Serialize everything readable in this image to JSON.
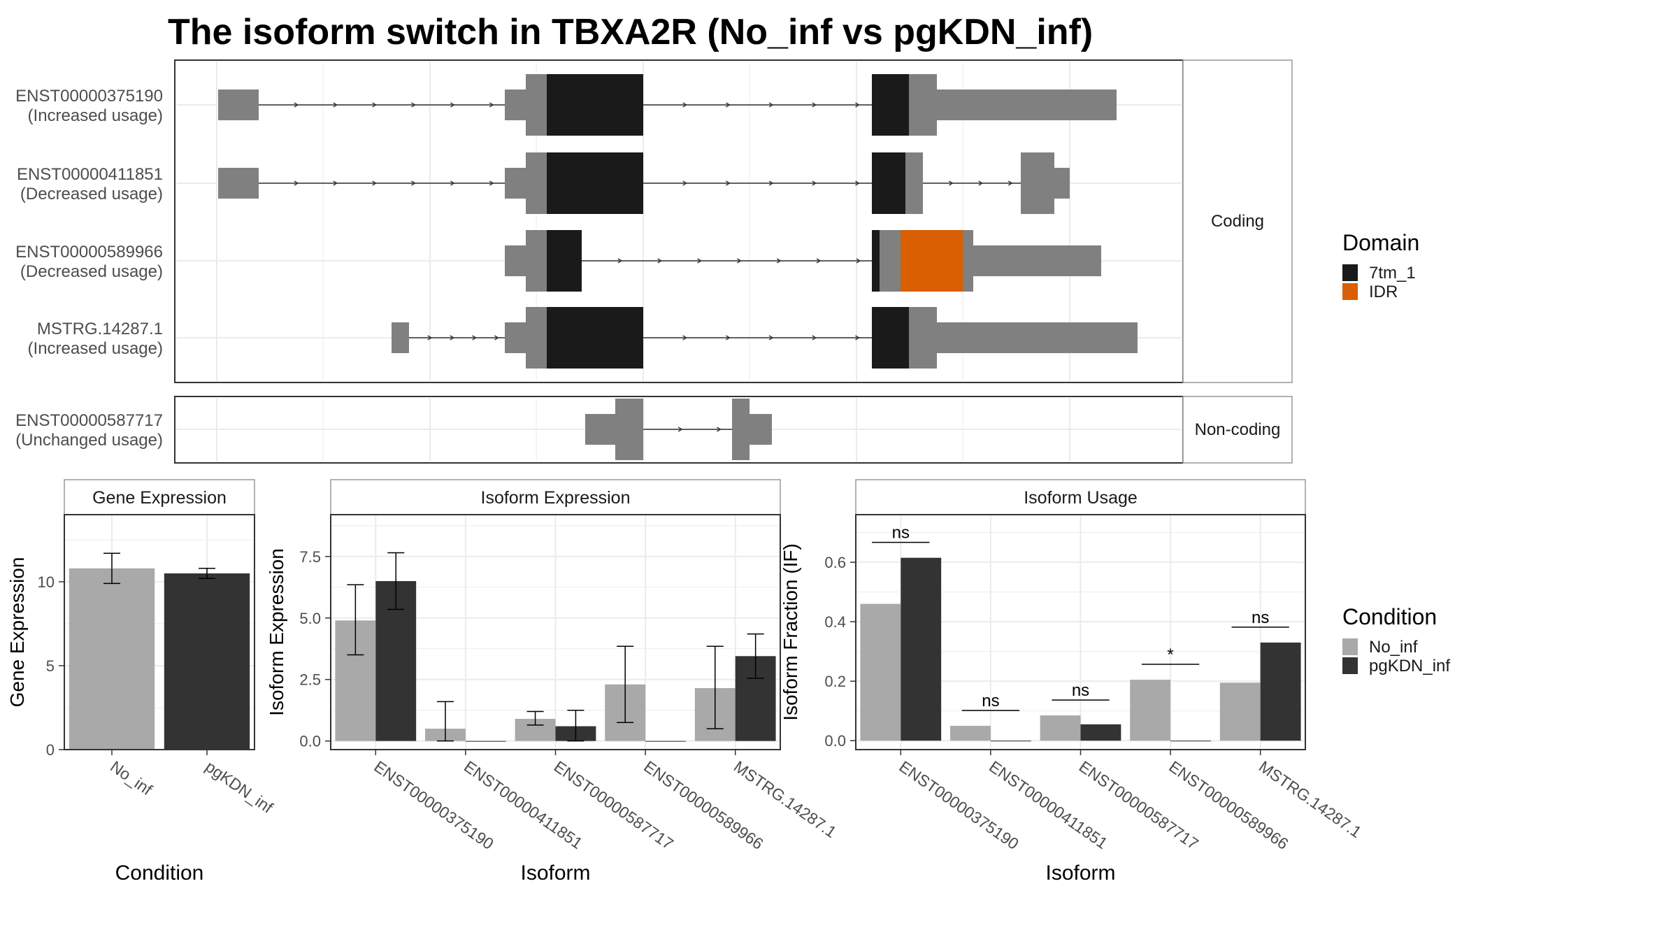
{
  "title": "The isoform switch in TBXA2R (No_inf vs pgKDN_inf)",
  "colors": {
    "exon": "#808080",
    "domain_7tm_1": "#1a1a1a",
    "domain_IDR": "#d95f02",
    "no_inf": "#a9a9a9",
    "pgkdn_inf": "#333333",
    "frame": "#333333",
    "grid": "#ebebeb",
    "strip_bg": "#ffffff"
  },
  "structure": {
    "coding_label": "Coding",
    "noncoding_label": "Non-coding",
    "isoforms": [
      {
        "id": "ENST00000375190",
        "usage": "(Increased usage)"
      },
      {
        "id": "ENST00000411851",
        "usage": "(Decreased usage)"
      },
      {
        "id": "ENST00000589966",
        "usage": "(Decreased usage)"
      },
      {
        "id": "MSTRG.14287.1",
        "usage": "(Increased usage)"
      },
      {
        "id": "ENST00000587717",
        "usage": "(Unchanged usage)"
      }
    ]
  },
  "domain_legend": {
    "title": "Domain",
    "items": [
      {
        "label": "7tm_1",
        "color": "#1a1a1a"
      },
      {
        "label": "IDR",
        "color": "#d95f02"
      }
    ]
  },
  "condition_legend": {
    "title": "Condition",
    "items": [
      {
        "label": "No_inf",
        "color": "#a9a9a9"
      },
      {
        "label": "pgKDN_inf",
        "color": "#333333"
      }
    ]
  },
  "chart_data": [
    {
      "type": "bar",
      "title": "Gene Expression",
      "xlabel": "Condition",
      "ylabel": "Gene Expression",
      "categories": [
        "No_inf",
        "pgKDN_inf"
      ],
      "values": [
        10.8,
        10.5
      ],
      "errors": [
        [
          9.9,
          11.7
        ],
        [
          10.2,
          10.8
        ]
      ],
      "ylim": [
        0,
        14
      ],
      "yticks": [
        0,
        5,
        10
      ],
      "ytick_labels": [
        "0",
        "5",
        "10"
      ]
    },
    {
      "type": "bar",
      "title": "Isoform Expression",
      "xlabel": "Isoform",
      "ylabel": "Isoform Expression",
      "categories": [
        "ENST00000375190",
        "ENST00000411851",
        "ENST00000587717",
        "ENST00000589966",
        "MSTRG.14287.1"
      ],
      "series": [
        {
          "name": "No_inf",
          "values": [
            4.9,
            0.5,
            0.9,
            2.3,
            2.15
          ],
          "errors": [
            [
              3.5,
              6.35
            ],
            [
              0.0,
              1.6
            ],
            [
              0.65,
              1.2
            ],
            [
              0.75,
              3.85
            ],
            [
              0.5,
              3.85
            ]
          ]
        },
        {
          "name": "pgKDN_inf",
          "values": [
            6.5,
            0.0,
            0.6,
            0.0,
            3.45
          ],
          "errors": [
            [
              5.35,
              7.65
            ],
            null,
            [
              0.0,
              1.25
            ],
            null,
            [
              2.55,
              4.35
            ]
          ]
        }
      ],
      "ylim": [
        -0.35,
        9.2
      ],
      "yticks": [
        0,
        2.5,
        5,
        7.5
      ],
      "ytick_labels": [
        "0.0",
        "2.5",
        "5.0",
        "7.5"
      ]
    },
    {
      "type": "bar",
      "title": "Isoform Usage",
      "xlabel": "Isoform",
      "ylabel": "Isoform Fraction (IF)",
      "categories": [
        "ENST00000375190",
        "ENST00000411851",
        "ENST00000587717",
        "ENST00000589966",
        "MSTRG.14287.1"
      ],
      "series": [
        {
          "name": "No_inf",
          "values": [
            0.46,
            0.05,
            0.085,
            0.205,
            0.195
          ]
        },
        {
          "name": "pgKDN_inf",
          "values": [
            0.615,
            0.0,
            0.055,
            0.0,
            0.33
          ]
        }
      ],
      "significance": [
        "ns",
        "ns",
        "ns",
        "*",
        "ns"
      ],
      "ylim": [
        -0.03,
        0.76
      ],
      "yticks": [
        0,
        0.2,
        0.4,
        0.6
      ],
      "ytick_labels": [
        "0.0",
        "0.2",
        "0.4",
        "0.6"
      ]
    }
  ]
}
